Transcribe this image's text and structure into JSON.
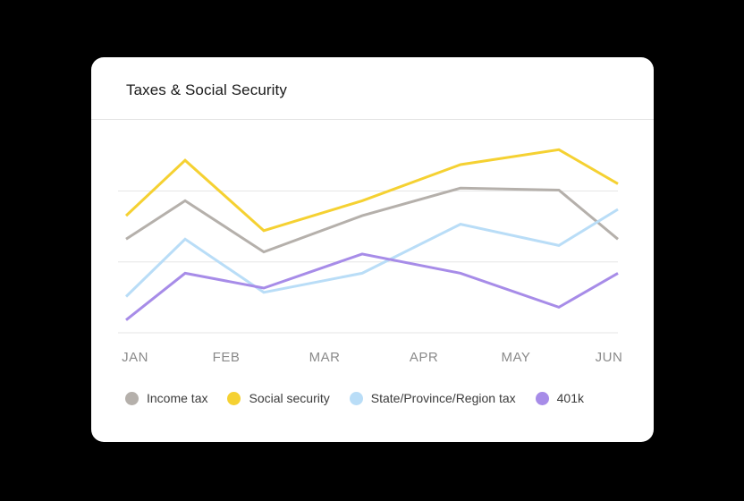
{
  "card": {
    "title": "Taxes & Social Security"
  },
  "chart_data": {
    "type": "line",
    "title": "Taxes & Social Security",
    "categories": [
      "JAN",
      "FEB",
      "MAR",
      "APR",
      "MAY",
      "JUN"
    ],
    "x": [
      0,
      0.7,
      1.4,
      2.0,
      3.0,
      3.5,
      4.0,
      4.5,
      5.0
    ],
    "ylim": [
      0,
      100
    ],
    "grid": true,
    "legend_position": "bottom",
    "series": [
      {
        "name": "Income tax",
        "color": "#b5b0ab",
        "points": [
          [
            0,
            44
          ],
          [
            0.6,
            62
          ],
          [
            1.4,
            38
          ],
          [
            2.4,
            55
          ],
          [
            3.4,
            68
          ],
          [
            4.4,
            67
          ],
          [
            5.0,
            44
          ]
        ]
      },
      {
        "name": "Social security",
        "color": "#f5d132",
        "points": [
          [
            0,
            55
          ],
          [
            0.6,
            81
          ],
          [
            1.4,
            48
          ],
          [
            2.4,
            62
          ],
          [
            3.4,
            79
          ],
          [
            4.4,
            86
          ],
          [
            5.0,
            70
          ]
        ]
      },
      {
        "name": "State/Province/Region tax",
        "color": "#b9ddf7",
        "points": [
          [
            0,
            17
          ],
          [
            0.6,
            44
          ],
          [
            1.4,
            19
          ],
          [
            2.4,
            28
          ],
          [
            3.4,
            51
          ],
          [
            4.4,
            41
          ],
          [
            5.0,
            58
          ]
        ]
      },
      {
        "name": "401k",
        "color": "#a78ce8",
        "points": [
          [
            0,
            6
          ],
          [
            0.6,
            28
          ],
          [
            1.4,
            21
          ],
          [
            2.4,
            37
          ],
          [
            3.4,
            28
          ],
          [
            4.4,
            12
          ],
          [
            5.0,
            28
          ]
        ]
      }
    ]
  }
}
